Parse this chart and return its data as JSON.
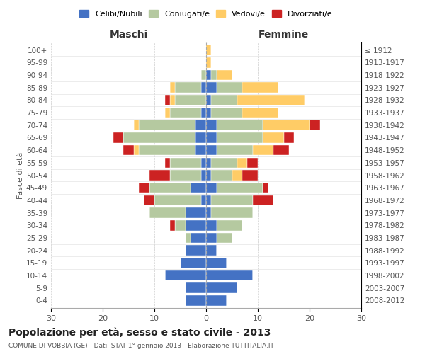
{
  "age_groups": [
    "0-4",
    "5-9",
    "10-14",
    "15-19",
    "20-24",
    "25-29",
    "30-34",
    "35-39",
    "40-44",
    "45-49",
    "50-54",
    "55-59",
    "60-64",
    "65-69",
    "70-74",
    "75-79",
    "80-84",
    "85-89",
    "90-94",
    "95-99",
    "100+"
  ],
  "birth_years": [
    "2008-2012",
    "2003-2007",
    "1998-2002",
    "1993-1997",
    "1988-1992",
    "1983-1987",
    "1978-1982",
    "1973-1977",
    "1968-1972",
    "1963-1967",
    "1958-1962",
    "1953-1957",
    "1948-1952",
    "1943-1947",
    "1938-1942",
    "1933-1937",
    "1928-1932",
    "1923-1927",
    "1918-1922",
    "1913-1917",
    "≤ 1912"
  ],
  "male": {
    "celibi": [
      4,
      4,
      8,
      5,
      4,
      3,
      4,
      4,
      1,
      3,
      1,
      1,
      2,
      2,
      2,
      1,
      0,
      1,
      0,
      0,
      0
    ],
    "coniugati": [
      0,
      0,
      0,
      0,
      0,
      1,
      2,
      7,
      9,
      8,
      6,
      6,
      11,
      14,
      11,
      6,
      6,
      5,
      1,
      0,
      0
    ],
    "vedovi": [
      0,
      0,
      0,
      0,
      0,
      0,
      0,
      0,
      0,
      0,
      0,
      0,
      1,
      0,
      1,
      1,
      1,
      1,
      0,
      0,
      0
    ],
    "divorziati": [
      0,
      0,
      0,
      0,
      0,
      0,
      1,
      0,
      2,
      2,
      4,
      1,
      2,
      2,
      0,
      0,
      1,
      0,
      0,
      0,
      0
    ]
  },
  "female": {
    "nubili": [
      4,
      6,
      9,
      4,
      2,
      2,
      2,
      1,
      1,
      2,
      1,
      1,
      2,
      2,
      2,
      1,
      1,
      2,
      1,
      0,
      0
    ],
    "coniugate": [
      0,
      0,
      0,
      0,
      0,
      3,
      5,
      8,
      8,
      9,
      4,
      5,
      7,
      9,
      9,
      6,
      5,
      5,
      1,
      0,
      0
    ],
    "vedove": [
      0,
      0,
      0,
      0,
      0,
      0,
      0,
      0,
      0,
      0,
      2,
      2,
      4,
      4,
      9,
      7,
      13,
      7,
      3,
      1,
      1
    ],
    "divorziate": [
      0,
      0,
      0,
      0,
      0,
      0,
      0,
      0,
      4,
      1,
      3,
      2,
      3,
      2,
      2,
      0,
      0,
      0,
      0,
      0,
      0
    ]
  },
  "colors": {
    "celibi_nubili": "#4472C4",
    "coniugati": "#B5C9A0",
    "vedovi": "#FFCC66",
    "divorziati": "#CC2222"
  },
  "xlim": 30,
  "title": "Popolazione per età, sesso e stato civile - 2013",
  "subtitle": "COMUNE DI VOBBIA (GE) - Dati ISTAT 1° gennaio 2013 - Elaborazione TUTTITALIA.IT",
  "ylabel_left": "Fasce di età",
  "xlabel_left": "Maschi",
  "xlabel_right": "Femmine"
}
